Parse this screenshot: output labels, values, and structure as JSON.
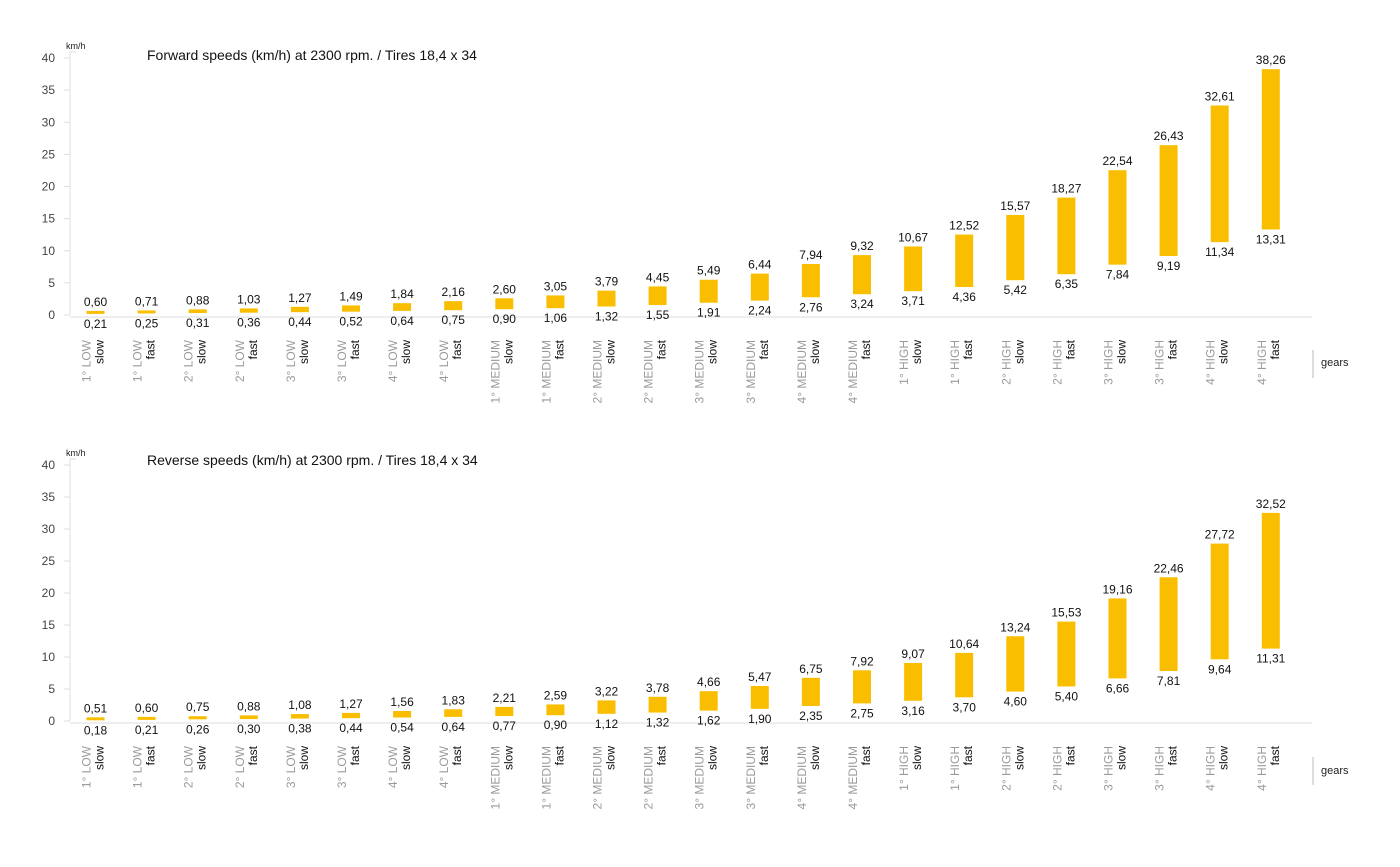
{
  "colors": {
    "bar": "#F9BE00",
    "axis": "#dddddd"
  },
  "chart_data": [
    {
      "type": "bar",
      "subtype": "floating-range",
      "title": "Forward speeds (km/h) at 2300 rpm. / Tires 18,4 x 34",
      "ylabel": "km/h",
      "xlabel": "gears",
      "ylim": [
        0,
        40
      ],
      "yticks": [
        0,
        5,
        10,
        15,
        20,
        25,
        30,
        35,
        40
      ],
      "categories": [
        {
          "gear": "1° LOW",
          "speed": "slow"
        },
        {
          "gear": "1° LOW",
          "speed": "fast"
        },
        {
          "gear": "2° LOW",
          "speed": "slow"
        },
        {
          "gear": "2° LOW",
          "speed": "fast"
        },
        {
          "gear": "3° LOW",
          "speed": "slow"
        },
        {
          "gear": "3° LOW",
          "speed": "fast"
        },
        {
          "gear": "4° LOW",
          "speed": "slow"
        },
        {
          "gear": "4° LOW",
          "speed": "fast"
        },
        {
          "gear": "1° MEDIUM",
          "speed": "slow"
        },
        {
          "gear": "1° MEDIUM",
          "speed": "fast"
        },
        {
          "gear": "2° MEDIUM",
          "speed": "slow"
        },
        {
          "gear": "2° MEDIUM",
          "speed": "fast"
        },
        {
          "gear": "3° MEDIUM",
          "speed": "slow"
        },
        {
          "gear": "3° MEDIUM",
          "speed": "fast"
        },
        {
          "gear": "4° MEDIUM",
          "speed": "slow"
        },
        {
          "gear": "4° MEDIUM",
          "speed": "fast"
        },
        {
          "gear": "1° HIGH",
          "speed": "slow"
        },
        {
          "gear": "1° HIGH",
          "speed": "fast"
        },
        {
          "gear": "2° HIGH",
          "speed": "slow"
        },
        {
          "gear": "2° HIGH",
          "speed": "fast"
        },
        {
          "gear": "3° HIGH",
          "speed": "slow"
        },
        {
          "gear": "3° HIGH",
          "speed": "fast"
        },
        {
          "gear": "4° HIGH",
          "speed": "slow"
        },
        {
          "gear": "4° HIGH",
          "speed": "fast"
        }
      ],
      "high": [
        0.6,
        0.71,
        0.88,
        1.03,
        1.27,
        1.49,
        1.84,
        2.16,
        2.6,
        3.05,
        3.79,
        4.45,
        5.49,
        6.44,
        7.94,
        9.32,
        10.67,
        12.52,
        15.57,
        18.27,
        22.54,
        26.43,
        32.61,
        38.26
      ],
      "low": [
        0.21,
        0.25,
        0.31,
        0.36,
        0.44,
        0.52,
        0.64,
        0.75,
        0.9,
        1.06,
        1.32,
        1.55,
        1.91,
        2.24,
        2.76,
        3.24,
        3.71,
        4.36,
        5.42,
        6.35,
        7.84,
        9.19,
        11.34,
        13.31
      ],
      "high_labels": [
        "0,60",
        "0,71",
        "0,88",
        "1,03",
        "1,27",
        "1,49",
        "1,84",
        "2,16",
        "2,60",
        "3,05",
        "3,79",
        "4,45",
        "5,49",
        "6,44",
        "7,94",
        "9,32",
        "10,67",
        "12,52",
        "15,57",
        "18,27",
        "22,54",
        "26,43",
        "32,61",
        "38,26"
      ],
      "low_labels": [
        "0,21",
        "0,25",
        "0,31",
        "0,36",
        "0,44",
        "0,52",
        "0,64",
        "0,75",
        "0,90",
        "1,06",
        "1,32",
        "1,55",
        "1,91",
        "2,24",
        "2,76",
        "3,24",
        "3,71",
        "4,36",
        "5,42",
        "6,35",
        "7,84",
        "9,19",
        "11,34",
        "13,31"
      ]
    },
    {
      "type": "bar",
      "subtype": "floating-range",
      "title": "Reverse speeds (km/h) at 2300 rpm. / Tires 18,4 x 34",
      "ylabel": "km/h",
      "xlabel": "gears",
      "ylim": [
        0,
        40
      ],
      "yticks": [
        0,
        5,
        10,
        15,
        20,
        25,
        30,
        35,
        40
      ],
      "categories": [
        {
          "gear": "1° LOW",
          "speed": "slow"
        },
        {
          "gear": "1° LOW",
          "speed": "fast"
        },
        {
          "gear": "2° LOW",
          "speed": "slow"
        },
        {
          "gear": "2° LOW",
          "speed": "fast"
        },
        {
          "gear": "3° LOW",
          "speed": "slow"
        },
        {
          "gear": "3° LOW",
          "speed": "fast"
        },
        {
          "gear": "4° LOW",
          "speed": "slow"
        },
        {
          "gear": "4° LOW",
          "speed": "fast"
        },
        {
          "gear": "1° MEDIUM",
          "speed": "slow"
        },
        {
          "gear": "1° MEDIUM",
          "speed": "fast"
        },
        {
          "gear": "2° MEDIUM",
          "speed": "slow"
        },
        {
          "gear": "2° MEDIUM",
          "speed": "fast"
        },
        {
          "gear": "3° MEDIUM",
          "speed": "slow"
        },
        {
          "gear": "3° MEDIUM",
          "speed": "fast"
        },
        {
          "gear": "4° MEDIUM",
          "speed": "slow"
        },
        {
          "gear": "4° MEDIUM",
          "speed": "fast"
        },
        {
          "gear": "1° HIGH",
          "speed": "slow"
        },
        {
          "gear": "1° HIGH",
          "speed": "fast"
        },
        {
          "gear": "2° HIGH",
          "speed": "slow"
        },
        {
          "gear": "2° HIGH",
          "speed": "fast"
        },
        {
          "gear": "3° HIGH",
          "speed": "slow"
        },
        {
          "gear": "3° HIGH",
          "speed": "fast"
        },
        {
          "gear": "4° HIGH",
          "speed": "slow"
        },
        {
          "gear": "4° HIGH",
          "speed": "fast"
        }
      ],
      "high": [
        0.51,
        0.6,
        0.75,
        0.88,
        1.08,
        1.27,
        1.56,
        1.83,
        2.21,
        2.59,
        3.22,
        3.78,
        4.66,
        5.47,
        6.75,
        7.92,
        9.07,
        10.64,
        13.24,
        15.53,
        19.16,
        22.46,
        27.72,
        32.52
      ],
      "low": [
        0.18,
        0.21,
        0.26,
        0.3,
        0.38,
        0.44,
        0.54,
        0.64,
        0.77,
        0.9,
        1.12,
        1.32,
        1.62,
        1.9,
        2.35,
        2.75,
        3.16,
        3.7,
        4.6,
        5.4,
        6.66,
        7.81,
        9.64,
        11.31
      ],
      "high_labels": [
        "0,51",
        "0,60",
        "0,75",
        "0,88",
        "1,08",
        "1,27",
        "1,56",
        "1,83",
        "2,21",
        "2,59",
        "3,22",
        "3,78",
        "4,66",
        "5,47",
        "6,75",
        "7,92",
        "9,07",
        "10,64",
        "13,24",
        "15,53",
        "19,16",
        "22,46",
        "27,72",
        "32,52"
      ],
      "low_labels": [
        "0,18",
        "0,21",
        "0,26",
        "0,30",
        "0,38",
        "0,44",
        "0,54",
        "0,64",
        "0,77",
        "0,90",
        "1,12",
        "1,32",
        "1,62",
        "1,90",
        "2,35",
        "2,75",
        "3,16",
        "3,70",
        "4,60",
        "5,40",
        "6,66",
        "7,81",
        "9,64",
        "11,31"
      ]
    }
  ]
}
